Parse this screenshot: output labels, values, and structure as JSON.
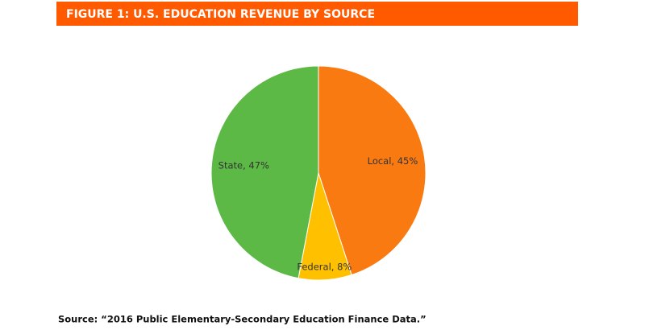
{
  "chart_data": {
    "type": "pie",
    "title": "FIGURE 1: U.S. EDUCATION REVENUE BY SOURCE",
    "values": [
      45,
      8,
      47
    ],
    "value_labels": [
      "Local, 45%",
      "Federal, 8%",
      "State, 47%"
    ],
    "colors": [
      "#f97a10",
      "#ffc000",
      "#5cb946"
    ],
    "source": "Source: “2016 Public Elementary-Secondary Education Finance Data.”"
  }
}
